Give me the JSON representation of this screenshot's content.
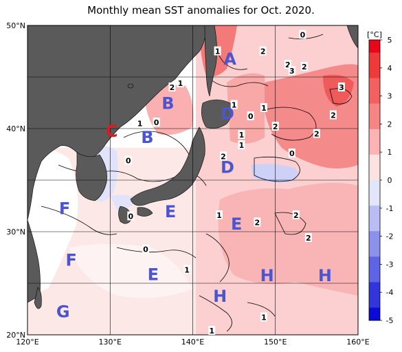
{
  "title": "Monthly mean SST anomalies for Oct. 2020.",
  "axes": {
    "lon_labels": [
      "120°E",
      "130°E",
      "140°E",
      "150°E",
      "160°E"
    ],
    "lat_labels": [
      "50°N",
      "40°N",
      "30°N",
      "20°N"
    ],
    "lon_range": [
      120,
      160
    ],
    "lat_range": [
      20,
      50
    ],
    "grid": true
  },
  "colorbar": {
    "unit": "[°C]",
    "ticks": [
      "5",
      "4",
      "3",
      "2",
      "1",
      "0",
      "-1",
      "-2",
      "-3",
      "-4",
      "-5"
    ],
    "range": [
      -5,
      5
    ],
    "colors": {
      "p5": "#e8071a",
      "p4": "#ee3a3a",
      "p3": "#f46060",
      "p2": "#f88585",
      "p1": "#fbb3b3",
      "p0": "#fde2e2",
      "n0": "#e3e6fb",
      "n1": "#b9bdf4",
      "n2": "#8c92ec",
      "n3": "#5e64e3",
      "n4": "#3135da",
      "n5": "#0a0ad9"
    }
  },
  "colors": {
    "land": "#5a5a5a",
    "sea_neutral": "#ffffff",
    "region_label": "#4b55cf",
    "region_label_highlight": "#e1191b"
  },
  "regions": [
    {
      "id": "A",
      "label": "A",
      "lon": 144.5,
      "lat": 46.8,
      "color": "blue"
    },
    {
      "id": "B1",
      "label": "B",
      "lon": 137.0,
      "lat": 42.5,
      "color": "blue"
    },
    {
      "id": "B2",
      "label": "B",
      "lon": 134.5,
      "lat": 39.2,
      "color": "blue"
    },
    {
      "id": "C",
      "label": "C",
      "lon": 130.2,
      "lat": 39.8,
      "color": "red"
    },
    {
      "id": "D1",
      "label": "D",
      "lon": 144.2,
      "lat": 41.5,
      "color": "blue"
    },
    {
      "id": "D2",
      "label": "D",
      "lon": 144.2,
      "lat": 36.3,
      "color": "blue"
    },
    {
      "id": "E1",
      "label": "E",
      "lon": 137.3,
      "lat": 32.0,
      "color": "blue"
    },
    {
      "id": "E2",
      "label": "E",
      "lon": 145.3,
      "lat": 30.8,
      "color": "blue"
    },
    {
      "id": "E3",
      "label": "E",
      "lon": 135.2,
      "lat": 25.9,
      "color": "blue"
    },
    {
      "id": "F1",
      "label": "F",
      "lon": 124.5,
      "lat": 32.3,
      "color": "blue"
    },
    {
      "id": "F2",
      "label": "F",
      "lon": 125.3,
      "lat": 27.3,
      "color": "blue"
    },
    {
      "id": "G",
      "label": "G",
      "lon": 124.3,
      "lat": 22.3,
      "color": "blue"
    },
    {
      "id": "H1",
      "label": "H",
      "lon": 149.0,
      "lat": 25.8,
      "color": "blue"
    },
    {
      "id": "H2",
      "label": "H",
      "lon": 156.0,
      "lat": 25.8,
      "color": "blue"
    },
    {
      "id": "H3",
      "label": "H",
      "lon": 143.3,
      "lat": 23.8,
      "color": "blue"
    }
  ],
  "contour_labels": [
    {
      "text": "1",
      "lon": 143.0,
      "lat": 47.5
    },
    {
      "text": "2",
      "lon": 148.5,
      "lat": 47.5
    },
    {
      "text": "0",
      "lon": 153.3,
      "lat": 49.1
    },
    {
      "text": "2",
      "lon": 151.5,
      "lat": 46.2
    },
    {
      "text": "3",
      "lon": 152.0,
      "lat": 45.6
    },
    {
      "text": "2",
      "lon": 153.5,
      "lat": 46.0
    },
    {
      "text": "3",
      "lon": 158.0,
      "lat": 44.0
    },
    {
      "text": "2",
      "lon": 137.5,
      "lat": 44.0
    },
    {
      "text": "1",
      "lon": 138.5,
      "lat": 44.4
    },
    {
      "text": "1",
      "lon": 145.0,
      "lat": 42.3
    },
    {
      "text": "0",
      "lon": 147.0,
      "lat": 41.2
    },
    {
      "text": "1",
      "lon": 148.6,
      "lat": 42.0
    },
    {
      "text": "2",
      "lon": 157.0,
      "lat": 41.3
    },
    {
      "text": "2",
      "lon": 150.0,
      "lat": 40.2
    },
    {
      "text": "2",
      "lon": 155.0,
      "lat": 39.5
    },
    {
      "text": "1",
      "lon": 145.9,
      "lat": 39.4
    },
    {
      "text": "1",
      "lon": 145.9,
      "lat": 38.4
    },
    {
      "text": "0",
      "lon": 152.0,
      "lat": 37.6
    },
    {
      "text": "2",
      "lon": 143.7,
      "lat": 37.3
    },
    {
      "text": "1",
      "lon": 133.6,
      "lat": 40.5
    },
    {
      "text": "0",
      "lon": 135.6,
      "lat": 40.6
    },
    {
      "text": "0",
      "lon": 132.2,
      "lat": 36.9
    },
    {
      "text": "0",
      "lon": 132.5,
      "lat": 31.5
    },
    {
      "text": "1",
      "lon": 143.2,
      "lat": 31.6
    },
    {
      "text": "2",
      "lon": 152.5,
      "lat": 31.6
    },
    {
      "text": "2",
      "lon": 147.8,
      "lat": 30.9
    },
    {
      "text": "2",
      "lon": 154.0,
      "lat": 29.4
    },
    {
      "text": "0",
      "lon": 134.3,
      "lat": 28.3
    },
    {
      "text": "1",
      "lon": 139.3,
      "lat": 26.3
    },
    {
      "text": "1",
      "lon": 148.6,
      "lat": 21.7
    },
    {
      "text": "1",
      "lon": 142.3,
      "lat": 20.4
    }
  ]
}
